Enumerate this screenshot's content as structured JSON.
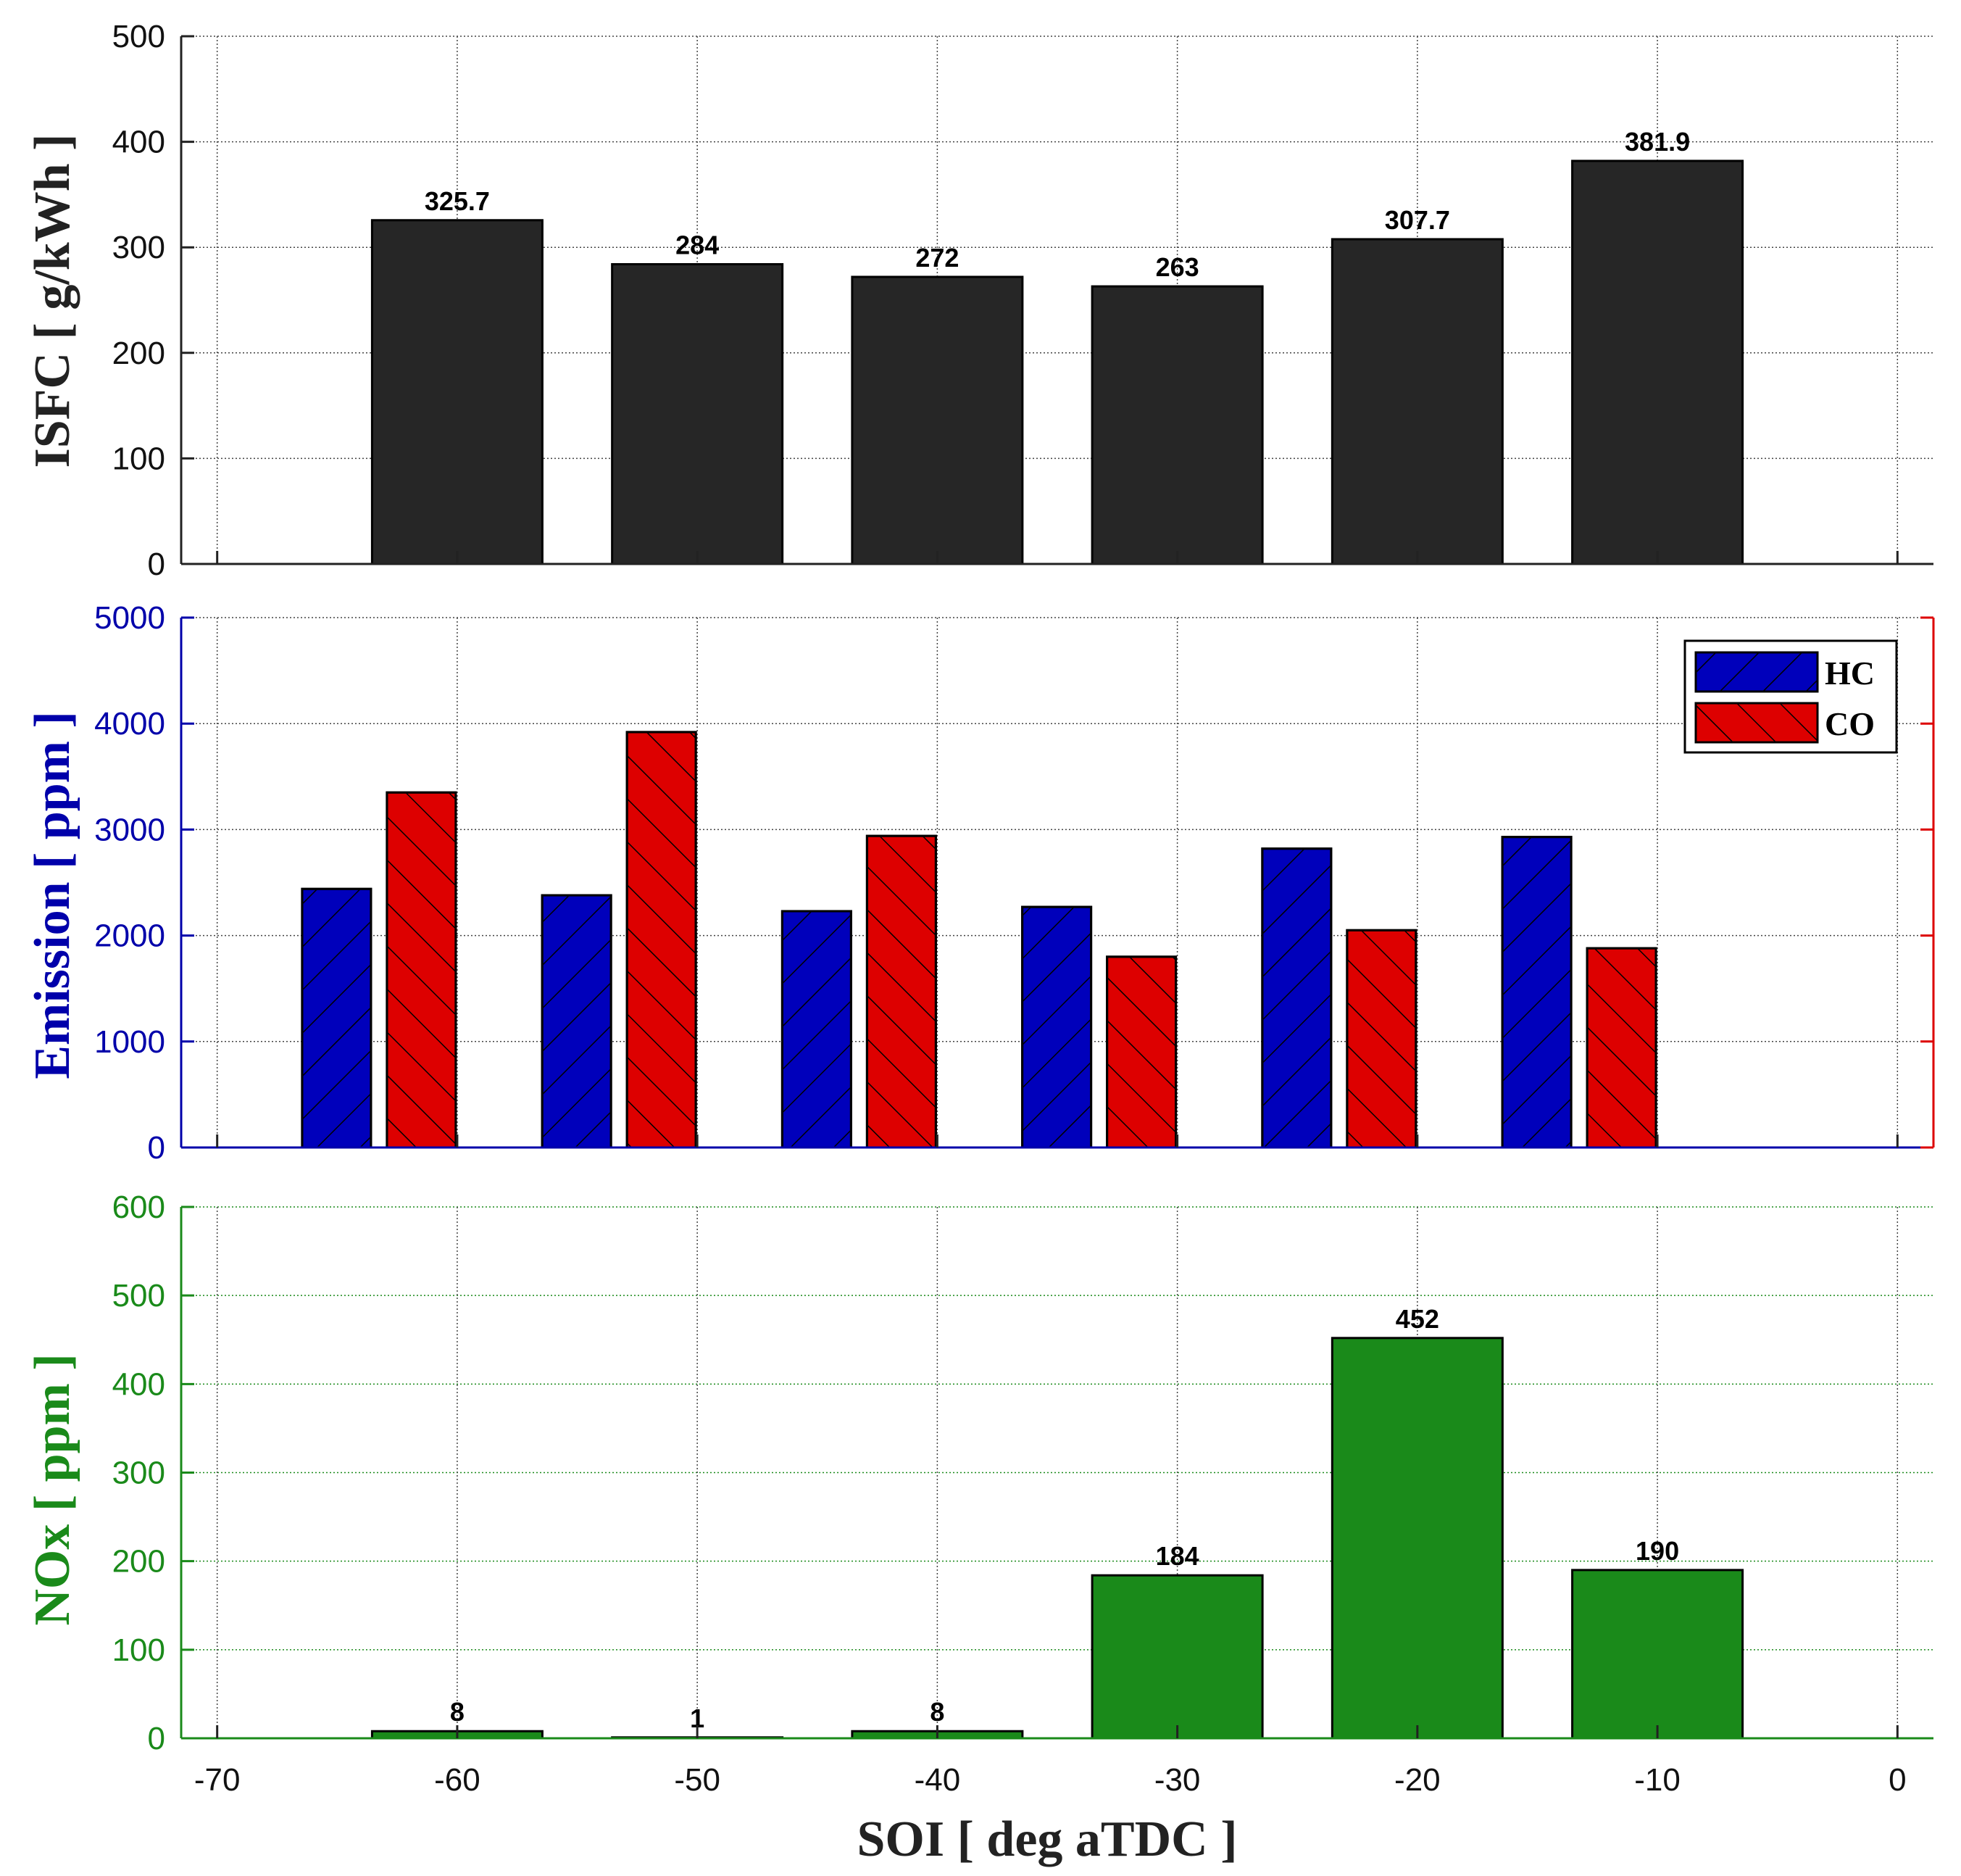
{
  "colors": {
    "isfc": "#262626",
    "hc": "#0000bb",
    "co": "#dd0000",
    "nox": "#1a8a1a",
    "emission_axis": "#0000aa",
    "nox_axis": "#1a8a1a",
    "grid": "#444444"
  },
  "xaxis": {
    "label": "SOI [ deg aTDC ]",
    "ticks": [
      -70,
      -60,
      -50,
      -40,
      -30,
      -20,
      -10,
      0
    ],
    "tick_labels": [
      "-70",
      "-60",
      "-50",
      "-40",
      "-30",
      "-20",
      "-10",
      "0"
    ],
    "xlim": [
      -71.5,
      1.5
    ]
  },
  "chart_data": [
    {
      "type": "bar",
      "name": "isfc",
      "ylabel": "ISFC [ g/kWh ]",
      "ylim": [
        0,
        500
      ],
      "yticks": [
        0,
        100,
        200,
        300,
        400,
        500
      ],
      "ytick_labels": [
        "0",
        "100",
        "200",
        "300",
        "400",
        "500"
      ],
      "x": [
        -60,
        -50,
        -40,
        -30,
        -20,
        -10
      ],
      "values": [
        325.7,
        284,
        272,
        263,
        307.7,
        381.9
      ],
      "value_labels": [
        "325.7",
        "284",
        "272",
        "263",
        "307.7",
        "381.9"
      ]
    },
    {
      "type": "bar",
      "name": "emission",
      "ylabel": "Emission [ ppm ]",
      "ylim": [
        0,
        5000
      ],
      "yticks": [
        0,
        1000,
        2000,
        3000,
        4000,
        5000
      ],
      "ytick_labels": [
        "0",
        "1000",
        "2000",
        "3000",
        "4000",
        "5000"
      ],
      "x": [
        -60,
        -50,
        -40,
        -30,
        -20,
        -10
      ],
      "series": [
        {
          "name": "HC",
          "values": [
            2440,
            2380,
            2230,
            2270,
            2820,
            2930
          ]
        },
        {
          "name": "CO",
          "values": [
            3350,
            3920,
            2940,
            1800,
            2050,
            1880
          ]
        }
      ],
      "legend": {
        "position": "top-right",
        "entries": [
          "HC",
          "CO"
        ]
      }
    },
    {
      "type": "bar",
      "name": "nox",
      "ylabel": "NOx [ ppm ]",
      "ylim": [
        0,
        600
      ],
      "yticks": [
        0,
        100,
        200,
        300,
        400,
        500,
        600
      ],
      "ytick_labels": [
        "0",
        "100",
        "200",
        "300",
        "400",
        "500",
        "600"
      ],
      "x": [
        -60,
        -50,
        -40,
        -30,
        -20,
        -10
      ],
      "values": [
        8,
        1,
        8,
        184,
        452,
        190
      ],
      "value_labels": [
        "8",
        "1",
        "8",
        "184",
        "452",
        "190"
      ]
    }
  ]
}
